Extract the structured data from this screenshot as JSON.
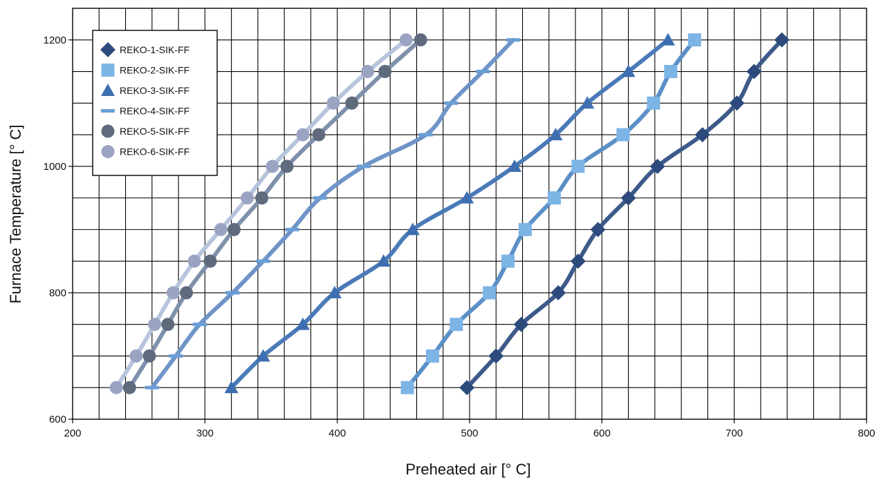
{
  "chart_data": {
    "type": "line",
    "title": "",
    "xlabel": "Preheated air [° C]",
    "ylabel": "Furnace Temperature [° C]",
    "xlim": [
      200,
      800
    ],
    "ylim": [
      600,
      1250
    ],
    "x_ticks": [
      200,
      300,
      400,
      500,
      600,
      700,
      800
    ],
    "y_ticks": [
      600,
      800,
      1000,
      1200
    ],
    "x_minor_step": 20,
    "y_minor_step": 50,
    "grid": true,
    "legend_position": "top-left",
    "series": [
      {
        "name": "REKO-1-SIK-FF",
        "marker": "diamond",
        "color": "#3d5a8a",
        "marker_color": "#2d4a7c",
        "x": [
          498,
          520,
          539,
          567,
          582,
          597,
          620,
          642,
          676,
          702,
          715,
          736
        ],
        "y": [
          650,
          700,
          750,
          800,
          850,
          900,
          950,
          1000,
          1050,
          1100,
          1150,
          1200
        ]
      },
      {
        "name": "REKO-2-SIK-FF",
        "marker": "square",
        "color": "#5b8fc7",
        "marker_color": "#7db4e6",
        "x": [
          453,
          472,
          490,
          515,
          529,
          542,
          564,
          582,
          616,
          639,
          652,
          670
        ],
        "y": [
          650,
          700,
          750,
          800,
          850,
          900,
          950,
          1000,
          1050,
          1100,
          1150,
          1200
        ]
      },
      {
        "name": "REKO-3-SIK-FF",
        "marker": "triangle",
        "color": "#4a7ab8",
        "marker_color": "#3d6fb0",
        "x": [
          320,
          344,
          374,
          398,
          435,
          457,
          498,
          534,
          565,
          589,
          620,
          650
        ],
        "y": [
          650,
          700,
          750,
          800,
          850,
          900,
          950,
          1000,
          1050,
          1100,
          1150,
          1200
        ]
      },
      {
        "name": "REKO-4-SIK-FF",
        "marker": "dash",
        "color": "#6f94c8",
        "marker_color": "#6a9fd6",
        "x": [
          260,
          278,
          296,
          321,
          344,
          366,
          387,
          420,
          467,
          486,
          510,
          533
        ],
        "y": [
          650,
          700,
          750,
          800,
          850,
          900,
          950,
          1000,
          1050,
          1100,
          1150,
          1200
        ]
      },
      {
        "name": "REKO-5-SIK-FF",
        "marker": "circle",
        "color": "#7f90ab",
        "marker_color": "#5f6b7d",
        "x": [
          243,
          258,
          272,
          286,
          304,
          322,
          343,
          362,
          386,
          411,
          436,
          463
        ],
        "y": [
          650,
          700,
          750,
          800,
          850,
          900,
          950,
          1000,
          1050,
          1100,
          1150,
          1200
        ]
      },
      {
        "name": "REKO-6-SIK-FF",
        "marker": "circle",
        "color": "#b7c4dc",
        "marker_color": "#9aa4c2",
        "x": [
          233,
          248,
          262,
          276,
          292,
          312,
          332,
          351,
          374,
          397,
          423,
          452
        ],
        "y": [
          650,
          700,
          750,
          800,
          850,
          900,
          950,
          1000,
          1050,
          1100,
          1150,
          1200
        ]
      }
    ]
  }
}
